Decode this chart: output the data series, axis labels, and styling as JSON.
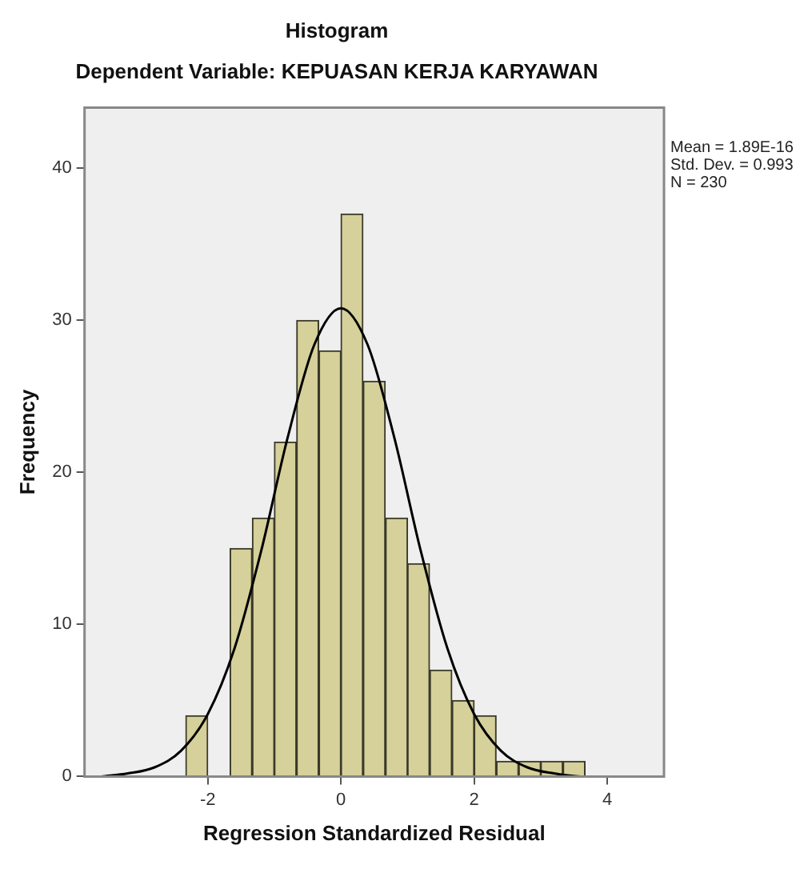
{
  "chart_data": {
    "type": "histogram",
    "title": "Histogram",
    "subtitle": "Dependent Variable: KEPUASAN KERJA KARYAWAN",
    "xlabel": "Regression Standardized Residual",
    "ylabel": "Frequency",
    "bins": [
      -2.33,
      -2.0,
      -1.67,
      -1.33,
      -1.0,
      -0.67,
      -0.33,
      0,
      0.33,
      0.67,
      1.0,
      1.33,
      1.67,
      2.0,
      2.33,
      2.67,
      3.0,
      3.33,
      3.67
    ],
    "values": [
      4,
      0,
      15,
      17,
      22,
      30,
      28,
      37,
      26,
      17,
      14,
      7,
      5,
      4,
      1,
      1,
      1,
      1
    ],
    "color": "#d6d09a",
    "series": [
      {
        "type": "line",
        "color": "#000000",
        "marker": "none",
        "x": [
          -3.6,
          -3.2,
          -2.8,
          -2.4,
          -2.0,
          -1.6,
          -1.2,
          -0.8,
          -0.4,
          0,
          0.4,
          0.8,
          1.2,
          1.6,
          2.0,
          2.4,
          2.8,
          3.2,
          3.6,
          4.0
        ],
        "values": [
          0,
          0.2,
          0.6,
          1.7,
          4.1,
          8.4,
          14.8,
          22.3,
          28.4,
          30.8,
          28.4,
          22.3,
          14.8,
          8.4,
          4.1,
          1.7,
          0.6,
          0.2,
          0,
          0
        ]
      }
    ],
    "xlim": [
      -3.85,
      4.85
    ],
    "ylim": [
      0,
      44
    ],
    "xticks": [
      -2,
      0,
      2,
      4
    ],
    "yticks": [
      0,
      10,
      20,
      30,
      40
    ],
    "grid": false,
    "legend": false,
    "annotations": [
      "Mean = 1.89E-16",
      "Std. Dev. = 0.993",
      "N = 230"
    ]
  }
}
